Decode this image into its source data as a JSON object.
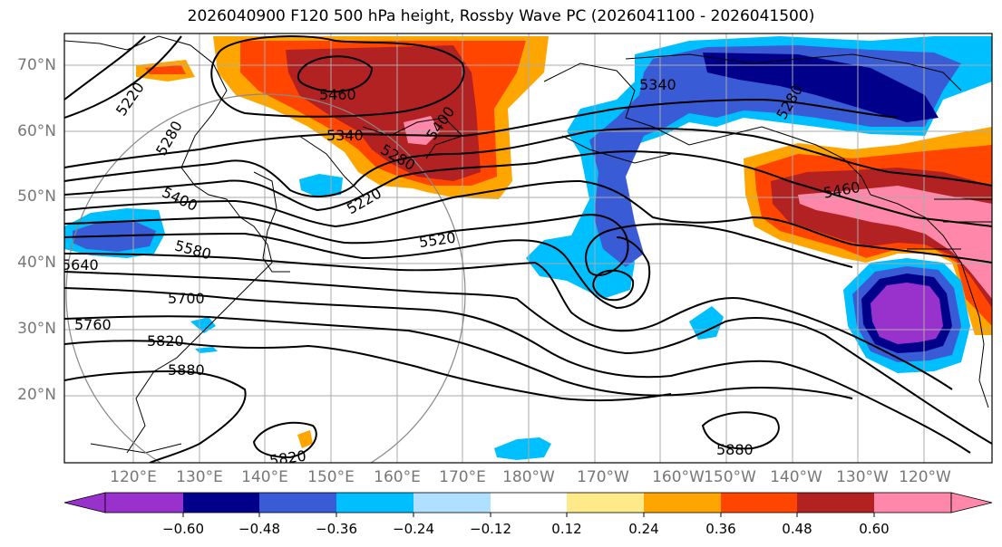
{
  "title": "2026040900 F120 500 hPa height, Rossby Wave PC (2026041100 - 2026041500)",
  "lat_labels": [
    "70°N",
    "60°N",
    "50°N",
    "40°N",
    "30°N",
    "20°N"
  ],
  "lon_labels": [
    "120°E",
    "130°E",
    "140°E",
    "150°E",
    "160°E",
    "170°E",
    "180°W",
    "170°W",
    "160°W",
    "150°W",
    "140°W",
    "130°W",
    "120°W"
  ],
  "contour_labels": [
    "5220",
    "5280",
    "5400",
    "5460",
    "5340",
    "5280",
    "5220",
    "5400",
    "5580",
    "5520",
    "5640",
    "5700",
    "5760",
    "5820",
    "5880",
    "5820",
    "5340",
    "5280",
    "5460",
    "5880"
  ],
  "colorbar": {
    "ticks": [
      "−0.60",
      "−0.48",
      "−0.36",
      "−0.24",
      "−0.12",
      "0.12",
      "0.24",
      "0.36",
      "0.48",
      "0.60"
    ],
    "colors": [
      "#9932cc",
      "#00008b",
      "#3a5bd6",
      "#00bfff",
      "#b0e0ff",
      "#ffffff",
      "#ffea8a",
      "#ffa500",
      "#ff4500",
      "#b22222",
      "#ff88aa"
    ]
  }
}
